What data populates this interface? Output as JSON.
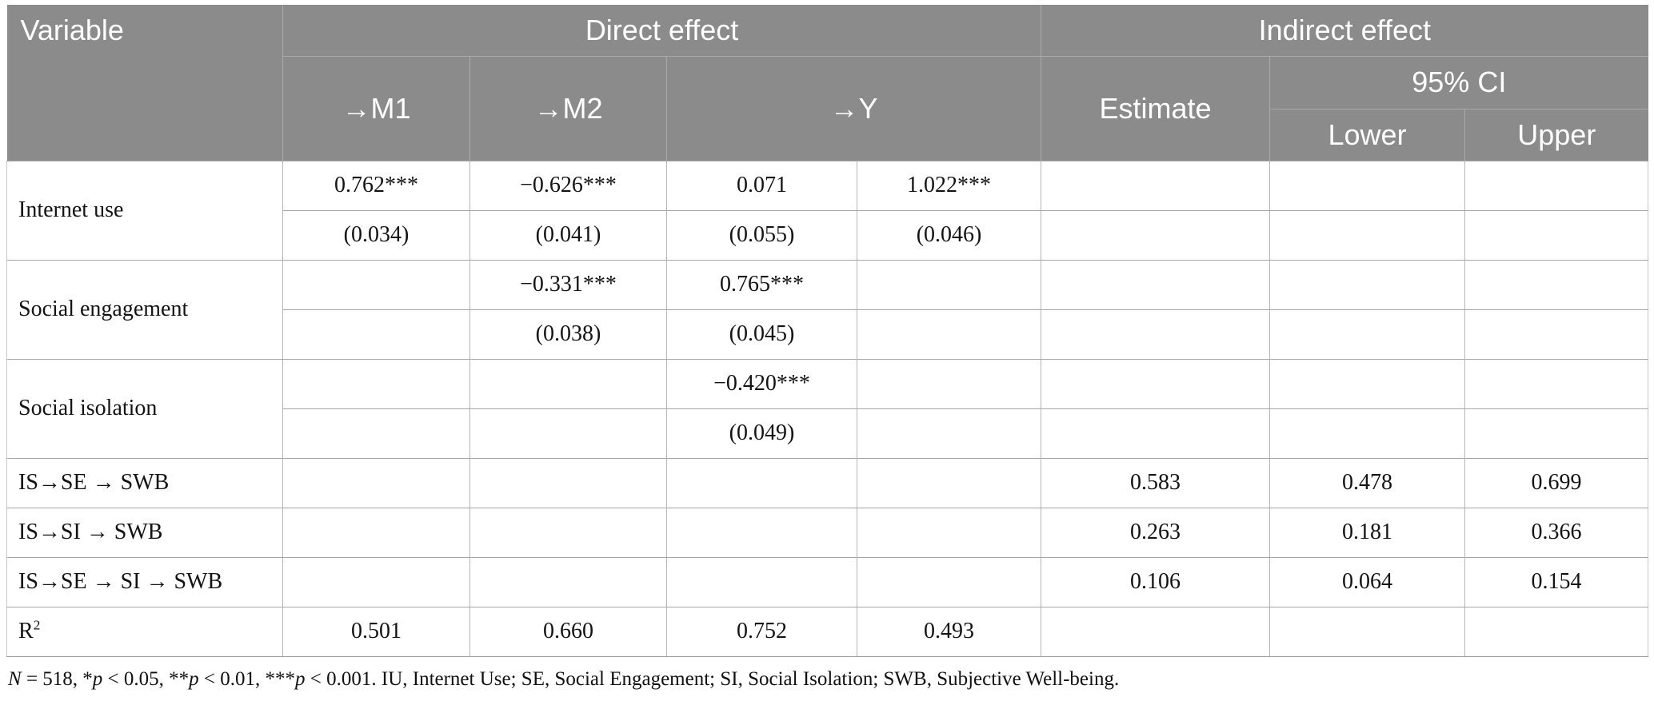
{
  "table": {
    "header": {
      "variable": "Variable",
      "direct_effect": "Direct effect",
      "indirect_effect": "Indirect effect",
      "m1": "→M1",
      "m2": "→M2",
      "y": "→Y",
      "estimate": "Estimate",
      "ci": "95% CI",
      "lower": "Lower",
      "upper": "Upper"
    },
    "groups": [
      {
        "label": "Internet use",
        "est": [
          "0.762***",
          "−0.626***",
          "0.071",
          "1.022***"
        ],
        "se": [
          "(0.034)",
          "(0.041)",
          "(0.055)",
          "(0.046)"
        ]
      },
      {
        "label": "Social engagement",
        "est": [
          "",
          "−0.331***",
          "0.765***",
          ""
        ],
        "se": [
          "",
          "(0.038)",
          "(0.045)",
          ""
        ]
      },
      {
        "label": "Social isolation",
        "est": [
          "",
          "",
          "−0.420***",
          ""
        ],
        "se": [
          "",
          "",
          "(0.049)",
          ""
        ]
      }
    ],
    "indirect_rows": [
      {
        "label": "IS→SE → SWB",
        "estimate": "0.583",
        "lower": "0.478",
        "upper": "0.699"
      },
      {
        "label": "IS→SI → SWB",
        "estimate": "0.263",
        "lower": "0.181",
        "upper": "0.366"
      },
      {
        "label": "IS→SE → SI → SWB",
        "estimate": "0.106",
        "lower": "0.064",
        "upper": "0.154"
      }
    ],
    "r2_row": {
      "label_segments": [
        {
          "text": "R"
        },
        {
          "text": "2",
          "sup": true
        }
      ],
      "values": [
        "0.501",
        "0.660",
        "0.752",
        "0.493"
      ]
    },
    "footnote_segments": [
      {
        "text": "N",
        "italic": true
      },
      {
        "text": " = 518, *"
      },
      {
        "text": "p",
        "italic": true
      },
      {
        "text": " < 0.05, **"
      },
      {
        "text": "p",
        "italic": true
      },
      {
        "text": " < 0.01, ***"
      },
      {
        "text": "p",
        "italic": true
      },
      {
        "text": " < 0.001. IU, Internet Use; SE, Social Engagement; SI, Social Isolation; SWB, Subjective Well-being."
      }
    ]
  },
  "colors": {
    "header_background": "#8b8b8b",
    "header_text": "#ffffff",
    "header_border": "#a9a9a9",
    "body_border": "#b6b6b6",
    "body_text": "#131313"
  }
}
